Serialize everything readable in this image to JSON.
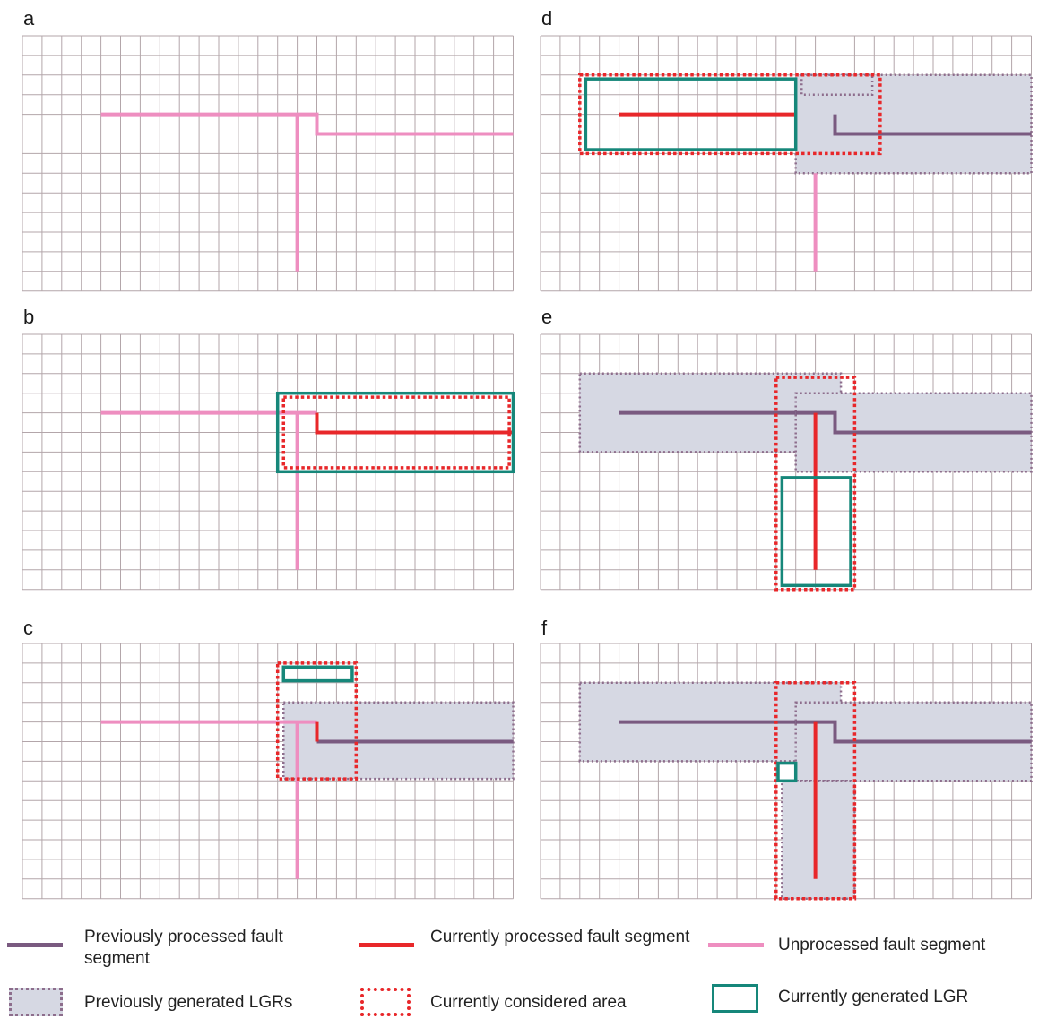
{
  "colors": {
    "grid": "#b3a6aa",
    "previous_fault": "#7a5a80",
    "current_fault": "#e8272a",
    "unprocessed_fault": "#ee8ec0",
    "previous_lgr_fill": "#d6d8e3",
    "previous_lgr_border": "#8d6d8c",
    "current_area": "#e8272a",
    "current_lgr": "#16877a"
  },
  "panels": [
    {
      "label": "a"
    },
    {
      "label": "b"
    },
    {
      "label": "c"
    },
    {
      "label": "d"
    },
    {
      "label": "e"
    },
    {
      "label": "f"
    }
  ],
  "legend": {
    "previous_fault": "Previously processed fault segment",
    "current_fault": "Currently processed  fault segment",
    "unprocessed_fault": "Unprocessed fault segment",
    "previous_lgr": "Previously generated LGRs",
    "current_area": "Currently considered area",
    "current_lgr": "Currently generated LGR"
  }
}
